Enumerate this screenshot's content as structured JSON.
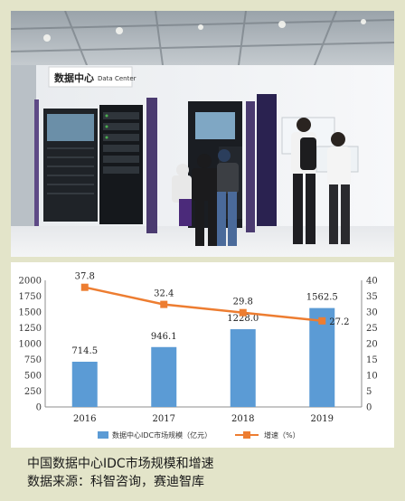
{
  "photo": {
    "sign_cn": "数据中心",
    "sign_en": "Data Center"
  },
  "colors": {
    "bar": "#5b9bd5",
    "line": "#ed7d31",
    "page_background": "#e3e4c9"
  },
  "chart_data": {
    "type": "bar",
    "categories": [
      "2016",
      "2017",
      "2018",
      "2019"
    ],
    "series": [
      {
        "name": "数据中心IDC市场规模（亿元）",
        "type": "bar",
        "axis": "left",
        "values": [
          714.5,
          946.1,
          1228.0,
          1562.5
        ],
        "labels": [
          "714.5",
          "946.1",
          "1228.0",
          "1562.5"
        ]
      },
      {
        "name": "增速（%）",
        "type": "line",
        "axis": "right",
        "values": [
          37.8,
          32.4,
          29.8,
          27.2
        ],
        "labels": [
          "37.8",
          "32.4",
          "29.8",
          "27.2"
        ]
      }
    ],
    "ylim": [
      0,
      2000
    ],
    "yticks": [
      0,
      250,
      500,
      750,
      1000,
      1250,
      1500,
      1750,
      2000
    ],
    "y2lim": [
      0,
      40
    ],
    "y2ticks": [
      0,
      5,
      10,
      15,
      20,
      25,
      30,
      35,
      40
    ],
    "legend": "bottom",
    "grid": false
  },
  "caption": {
    "line1": "中国数据中心IDC市场规模和增速",
    "line2": "数据来源：科智咨询，赛迪智库"
  }
}
